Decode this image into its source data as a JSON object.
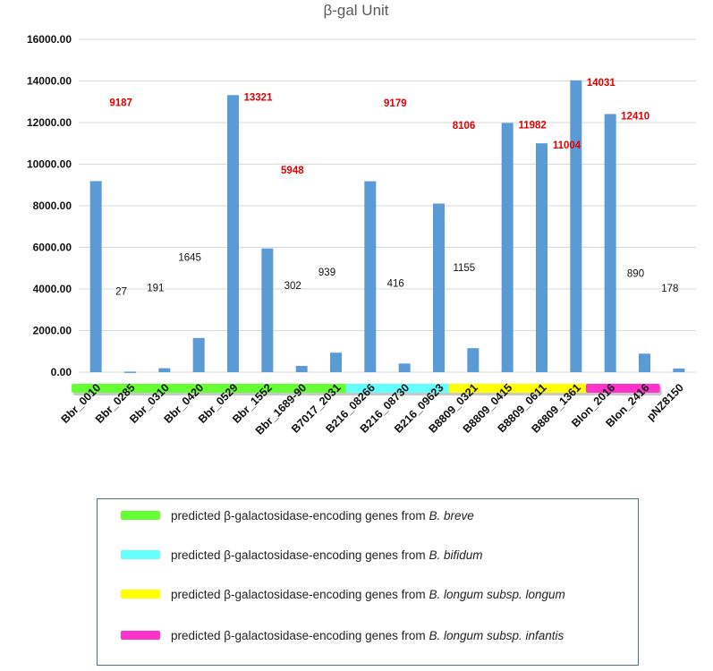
{
  "chart_data": {
    "type": "bar",
    "title": "β-gal Unit",
    "categories": [
      "Bbr_0010",
      "Bbr_0285",
      "Bbr_0310",
      "Bbr_0420",
      "Bbr_0529",
      "Bbr_1552",
      "Bbr_1689-90",
      "B7017_2031",
      "B216_08266",
      "B216_08730",
      "B216_09623",
      "B8809_0321",
      "B8809_0415",
      "B8809_0611",
      "B8809_1361",
      "Blon_2016",
      "Blon_2416",
      "pNZ8150"
    ],
    "values": [
      9187,
      27,
      191,
      1645,
      13321,
      5948,
      302,
      939,
      9179,
      416,
      8106,
      1155,
      11982,
      11004,
      14031,
      12410,
      890,
      178
    ],
    "value_labels": [
      "9187",
      "27",
      "191",
      "1645",
      "13321",
      "5948",
      "302",
      "939",
      "9179",
      "416",
      "8106",
      "1155",
      "11982",
      "11004",
      "14031",
      "12410",
      "890",
      "178"
    ],
    "highlighted": [
      true,
      false,
      false,
      false,
      true,
      true,
      false,
      false,
      true,
      false,
      true,
      false,
      true,
      true,
      true,
      true,
      false,
      false
    ],
    "yticks": [
      "0.00",
      "2000.00",
      "4000.00",
      "6000.00",
      "8000.00",
      "10000.00",
      "12000.00",
      "14000.00",
      "16000.00"
    ],
    "ylim": [
      0,
      16000
    ],
    "grid": true,
    "xlabel": "",
    "ylabel": "",
    "bar_color": "#5b9bd5",
    "highlight_label_color": "#e00000",
    "groups": [
      {
        "color": "#66ff33",
        "start": "Bbr_0010",
        "end": "B7017_2031"
      },
      {
        "color": "#66ffff",
        "start": "B216_08266",
        "end": "B216_09623"
      },
      {
        "color": "#ffff00",
        "start": "B8809_0321",
        "end": "B8809_1361"
      },
      {
        "color": "#ff33cc",
        "start": "Blon_2016",
        "end": "Blon_2416"
      }
    ]
  },
  "legend": [
    {
      "color": "#66ff33",
      "text": "predicted β-galactosidase-encoding genes from ",
      "species": "B. breve"
    },
    {
      "color": "#66ffff",
      "text": "predicted β-galactosidase-encoding genes from ",
      "species": "B. bifidum"
    },
    {
      "color": "#ffff00",
      "text": "predicted β-galactosidase-encoding genes from ",
      "species": "B. longum subsp. longum"
    },
    {
      "color": "#ff33cc",
      "text": "predicted β-galactosidase-encoding genes from ",
      "species": "B. longum subsp. infantis"
    }
  ]
}
